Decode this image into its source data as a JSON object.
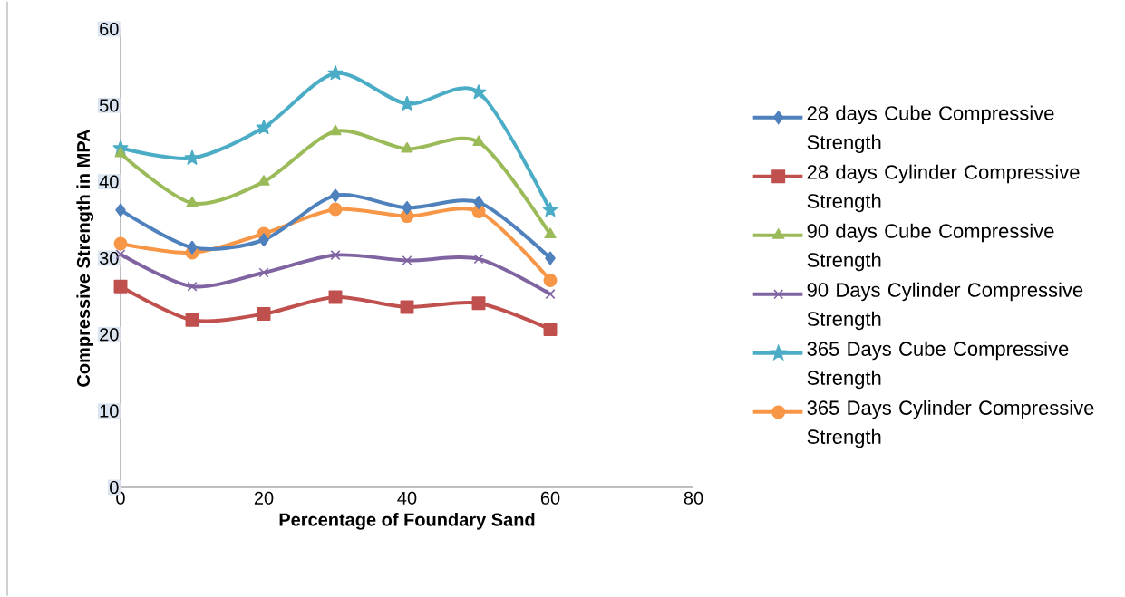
{
  "chart_data": {
    "type": "line",
    "xlabel": "Percentage of Foundary Sand",
    "ylabel": "Compressive Strength in MPA",
    "x": [
      0,
      10,
      20,
      30,
      40,
      50,
      60
    ],
    "xlim": [
      0,
      80
    ],
    "xticks": [
      0,
      20,
      40,
      60,
      80
    ],
    "ylim": [
      0,
      60
    ],
    "yticks": [
      0,
      10,
      20,
      30,
      40,
      50,
      60
    ],
    "grid": false,
    "legend": "right",
    "line_style": "solid",
    "series": [
      {
        "name": "28 days Cube Compressive Strength",
        "color": "#4f81bd",
        "marker": "diamond",
        "values": [
          36.3,
          31.4,
          32.4,
          38.2,
          36.6,
          37.3,
          30.0
        ]
      },
      {
        "name": "28 days Cylinder Compressive Strength",
        "color": "#c0504d",
        "marker": "square",
        "values": [
          26.3,
          21.9,
          22.7,
          24.9,
          23.6,
          24.1,
          20.7
        ]
      },
      {
        "name": "90 days Cube  Compressive Strength",
        "color": "#9bbb59",
        "marker": "triangle",
        "values": [
          43.7,
          37.2,
          40.0,
          46.6,
          44.3,
          45.2,
          33.1
        ]
      },
      {
        "name": "90 Days Cylinder Compressive Strength",
        "color": "#8064a2",
        "marker": "cross",
        "values": [
          30.5,
          26.3,
          28.1,
          30.4,
          29.7,
          29.9,
          25.3
        ]
      },
      {
        "name": "365 Days Cube Compressive Strength",
        "color": "#4bacc6",
        "marker": "star",
        "values": [
          44.4,
          43.1,
          47.1,
          54.2,
          50.2,
          51.7,
          36.3
        ]
      },
      {
        "name": "365 Days Cylinder Compressive Strength",
        "color": "#f79646",
        "marker": "circle",
        "values": [
          31.9,
          30.7,
          33.2,
          36.4,
          35.5,
          36.1,
          27.1
        ]
      }
    ]
  }
}
